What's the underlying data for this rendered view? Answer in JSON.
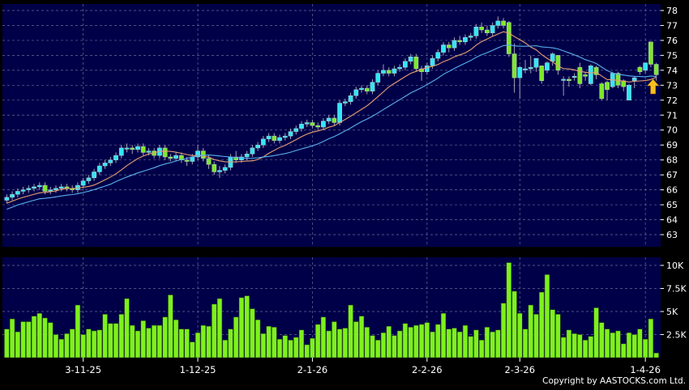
{
  "chart_data": [
    {
      "type": "candlestick",
      "panel": "price",
      "y_ticks": [
        63,
        64,
        65,
        66,
        67,
        68,
        69,
        70,
        71,
        72,
        73,
        74,
        75,
        76,
        77,
        78
      ],
      "ylim": [
        62.3,
        78.4
      ],
      "grid": true,
      "moving_averages": [
        {
          "period": 10,
          "color": "#e8a070"
        },
        {
          "period": 20,
          "color": "#5ab0f0"
        }
      ],
      "up_color": "#33e6f5",
      "down_color": "#7ee82a",
      "marker": {
        "icon": "up-arrow-icon",
        "color": "#f5c020",
        "index": 119
      },
      "open": [
        65.3,
        65.5,
        65.7,
        65.9,
        66.0,
        66.1,
        66.2,
        66.3,
        65.9,
        66.0,
        66.1,
        66.2,
        66.1,
        66.0,
        66.3,
        66.6,
        66.8,
        67.2,
        67.6,
        67.8,
        68.0,
        68.3,
        68.8,
        68.8,
        68.7,
        68.9,
        68.5,
        68.6,
        68.3,
        68.8,
        68.2,
        68.1,
        68.3,
        68.0,
        67.9,
        68.2,
        68.6,
        68.1,
        67.7,
        67.2,
        67.3,
        67.5,
        68.2,
        68.0,
        68.2,
        68.4,
        68.8,
        69.0,
        69.4,
        69.6,
        69.3,
        69.5,
        69.6,
        69.9,
        70.1,
        70.4,
        70.5,
        70.3,
        70.2,
        70.6,
        70.8,
        70.5,
        71.8,
        71.9,
        72.3,
        72.7,
        72.8,
        72.6,
        73.2,
        73.8,
        74.0,
        73.8,
        74.1,
        74.2,
        74.6,
        74.9,
        74.1,
        73.9,
        74.3,
        74.8,
        75.2,
        75.7,
        75.5,
        76.0,
        75.9,
        76.2,
        76.3,
        76.9,
        76.7,
        76.5,
        77.0,
        77.3,
        77.2,
        75.1,
        73.5,
        74.1,
        74.1,
        74.2,
        74.3,
        74.0,
        74.6,
        75.0,
        73.4,
        73.4,
        73.6,
        74.2,
        73.7,
        73.1,
        74.2,
        73.1,
        73.2,
        72.9,
        73.8,
        73.3,
        72.0,
        73.3,
        74.2,
        74.0,
        75.9,
        74.4
      ],
      "high": [
        65.7,
        65.9,
        66.1,
        66.2,
        66.3,
        66.4,
        66.5,
        66.5,
        66.2,
        66.3,
        66.4,
        66.4,
        66.3,
        66.5,
        66.8,
        67.0,
        67.4,
        67.8,
        68.0,
        68.2,
        68.5,
        69.0,
        69.1,
        69.0,
        69.1,
        69.1,
        68.8,
        68.8,
        69.0,
        69.0,
        68.4,
        68.5,
        68.5,
        68.2,
        68.4,
        69.0,
        68.8,
        68.3,
        67.9,
        67.6,
        67.7,
        68.4,
        68.6,
        68.4,
        68.6,
        69.0,
        69.2,
        69.6,
        69.8,
        69.8,
        69.7,
        69.8,
        70.1,
        70.3,
        70.6,
        70.7,
        70.7,
        70.5,
        70.8,
        71.0,
        71.0,
        72.0,
        72.1,
        72.5,
        72.9,
        73.0,
        73.0,
        73.4,
        74.0,
        74.4,
        74.2,
        74.3,
        74.4,
        74.8,
        75.1,
        75.1,
        74.3,
        74.5,
        75.0,
        75.4,
        75.9,
        75.9,
        76.2,
        76.3,
        76.4,
        76.5,
        77.1,
        77.2,
        77.0,
        77.2,
        77.6,
        77.5,
        77.3,
        75.8,
        74.3,
        74.7,
        75.0,
        74.8,
        74.3,
        74.6,
        75.2,
        75.0,
        73.6,
        73.6,
        73.8,
        74.5,
        73.9,
        74.4,
        74.3,
        73.2,
        73.3,
        73.9,
        73.9,
        73.4,
        73.1,
        73.6,
        74.3,
        74.5,
        75.9,
        74.5
      ],
      "low": [
        65.1,
        65.3,
        65.5,
        65.7,
        65.8,
        65.9,
        66.0,
        65.7,
        65.7,
        65.8,
        65.9,
        65.9,
        65.8,
        65.8,
        66.1,
        66.4,
        66.6,
        67.0,
        67.4,
        67.6,
        67.8,
        68.1,
        68.5,
        68.4,
        68.5,
        68.3,
        68.3,
        68.1,
        68.1,
        68.0,
        67.9,
        67.9,
        67.8,
        67.6,
        67.7,
        68.0,
        67.9,
        67.4,
        67.0,
        66.8,
        67.1,
        67.3,
        67.8,
        67.8,
        68.0,
        68.2,
        68.6,
        68.8,
        69.2,
        69.1,
        69.1,
        69.3,
        69.4,
        69.7,
        69.9,
        70.2,
        70.1,
        70.0,
        70.0,
        70.4,
        70.3,
        70.3,
        71.6,
        71.7,
        72.1,
        72.5,
        72.4,
        72.4,
        73.0,
        73.6,
        73.6,
        73.6,
        73.9,
        74.0,
        74.4,
        73.9,
        73.3,
        73.7,
        74.1,
        74.6,
        75.0,
        75.2,
        75.3,
        75.7,
        75.7,
        76.0,
        76.1,
        76.5,
        76.3,
        76.3,
        76.8,
        76.8,
        74.9,
        72.5,
        72.1,
        73.8,
        73.8,
        73.9,
        73.1,
        73.8,
        74.3,
        73.7,
        72.3,
        72.9,
        73.3,
        72.8,
        73.3,
        73.0,
        73.4,
        72.0,
        72.0,
        72.8,
        72.8,
        72.6,
        72.0,
        72.8,
        73.7,
        73.8,
        74.2,
        73.3
      ],
      "close": [
        65.5,
        65.7,
        65.9,
        66.0,
        66.1,
        66.2,
        66.3,
        65.9,
        66.0,
        66.1,
        66.2,
        66.1,
        66.0,
        66.3,
        66.6,
        66.8,
        67.2,
        67.6,
        67.8,
        68.0,
        68.3,
        68.8,
        68.8,
        68.7,
        68.9,
        68.5,
        68.6,
        68.3,
        68.8,
        68.2,
        68.1,
        68.3,
        68.0,
        67.9,
        68.2,
        68.6,
        68.1,
        67.7,
        67.2,
        67.3,
        67.5,
        68.2,
        68.0,
        68.2,
        68.4,
        68.8,
        69.0,
        69.4,
        69.6,
        69.3,
        69.5,
        69.6,
        69.9,
        70.1,
        70.4,
        70.5,
        70.3,
        70.2,
        70.6,
        70.8,
        70.5,
        71.8,
        71.9,
        72.3,
        72.7,
        72.8,
        72.6,
        73.2,
        73.8,
        74.0,
        73.8,
        74.1,
        74.2,
        74.6,
        74.9,
        74.1,
        73.9,
        74.3,
        74.8,
        75.2,
        75.7,
        75.5,
        76.0,
        75.9,
        76.2,
        76.3,
        76.9,
        76.7,
        76.5,
        77.0,
        77.3,
        77.0,
        75.1,
        73.5,
        74.2,
        74.1,
        74.2,
        74.8,
        73.3,
        74.5,
        75.1,
        74.0,
        73.4,
        73.3,
        73.6,
        73.1,
        73.6,
        74.3,
        73.7,
        72.1,
        72.7,
        73.8,
        73.0,
        72.9,
        73.0,
        73.5,
        73.9,
        74.5,
        74.4,
        73.7
      ]
    },
    {
      "type": "bar",
      "panel": "volume",
      "y_ticks": [
        2.5,
        5,
        7.5,
        10
      ],
      "y_tick_labels": [
        "2.5K",
        "5K",
        "7.5K",
        "10K"
      ],
      "ylim": [
        0,
        10.9
      ],
      "grid": true,
      "bar_color": "#7ef01e",
      "values": [
        3.1,
        4.2,
        2.8,
        3.9,
        3.9,
        4.5,
        4.8,
        4.3,
        3.8,
        2.5,
        2.0,
        2.6,
        3.1,
        5.7,
        2.5,
        3.1,
        2.9,
        3.0,
        4.7,
        3.7,
        3.7,
        4.7,
        6.4,
        3.5,
        2.9,
        4.0,
        3.2,
        3.5,
        3.5,
        4.4,
        6.8,
        4.1,
        3.1,
        3.1,
        1.7,
        2.7,
        3.5,
        3.4,
        5.8,
        6.4,
        1.9,
        3.1,
        4.4,
        6.5,
        6.7,
        5.3,
        4.1,
        2.6,
        3.4,
        3.3,
        2.0,
        2.4,
        1.9,
        2.2,
        3.0,
        1.4,
        2.1,
        3.6,
        4.4,
        2.9,
        3.9,
        3.1,
        3.2,
        5.7,
        3.9,
        4.5,
        3.3,
        2.4,
        1.9,
        2.7,
        3.4,
        2.4,
        2.9,
        3.7,
        3.3,
        3.5,
        3.6,
        3.8,
        2.8,
        3.6,
        4.8,
        3.1,
        3.2,
        2.8,
        3.5,
        2.3,
        3.0,
        1.9,
        3.3,
        2.8,
        3.0,
        5.9,
        10.3,
        7.2,
        4.8,
        3.1,
        5.7,
        4.7,
        7.1,
        9.0,
        5.2,
        4.7,
        2.2,
        3.0,
        2.6,
        2.5,
        1.9,
        2.3,
        5.4,
        3.8,
        3.1,
        2.7,
        2.9,
        1.5,
        2.7,
        2.5,
        3.1,
        2.0,
        4.2,
        0.5
      ]
    }
  ],
  "x_axis": {
    "ticks": [
      {
        "label": "3-11-25",
        "index": 14
      },
      {
        "label": "1-12-25",
        "index": 35
      },
      {
        "label": "2-1-26",
        "index": 56
      },
      {
        "label": "2-2-26",
        "index": 77
      },
      {
        "label": "2-3-26",
        "index": 94
      },
      {
        "label": "1-4-26",
        "index": 117
      }
    ]
  },
  "colors": {
    "background": "#000000",
    "plot": "#000048",
    "grid": "#6a6a9a",
    "text": "#ffffff"
  },
  "copyright": "Copyright by AASTOCKS.com Ltd."
}
